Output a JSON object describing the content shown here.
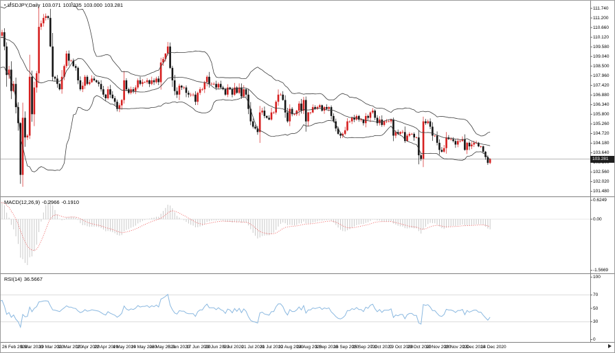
{
  "title_bar": {
    "bullet": "▪",
    "title": "USDJPY,Daily",
    "open": "103.071",
    "high": "103.335",
    "low": "103.000",
    "close": "103.281"
  },
  "macd_panel": {
    "name": "MACD(12,26,9)",
    "main_value": "-0.2966",
    "signal_value": "-0.1910"
  },
  "rsi_panel": {
    "name": "RSI(14)",
    "value": "36.5667"
  },
  "price_badge": "103.281",
  "chart_data": {
    "type": "candlestick",
    "symbol": "USDJPY",
    "timeframe": "Daily",
    "title": "USDJPY,Daily 103.071 103.335 103.000 103.281",
    "ylim": [
      101.23,
      112.09
    ],
    "first_open": 111.3,
    "warmup_closes": [
      108.7,
      109.0,
      109.2,
      109.8,
      109.9,
      109.7,
      109.6,
      109.9,
      110.0,
      109.9,
      109.8,
      110.4,
      111.2,
      112.1,
      111.6
    ],
    "closes": [
      110.7,
      110.2,
      110.4,
      109.6,
      108.0,
      108.3,
      107.1,
      107.5,
      106.2,
      105.3,
      102.4,
      105.6,
      104.5,
      104.6,
      107.9,
      105.8,
      107.3,
      108.1,
      110.7,
      110.9,
      111.2,
      111.3,
      111.2,
      109.6,
      107.9,
      107.8,
      107.5,
      107.2,
      107.9,
      108.5,
      109.2,
      108.8,
      108.8,
      108.5,
      108.4,
      107.7,
      107.2,
      107.4,
      107.9,
      107.5,
      107.6,
      107.8,
      107.7,
      107.6,
      107.5,
      107.2,
      106.9,
      106.7,
      107.2,
      106.9,
      106.7,
      106.5,
      106.1,
      106.3,
      106.6,
      107.7,
      107.2,
      107.0,
      107.2,
      107.1,
      107.3,
      107.7,
      107.5,
      107.6,
      107.6,
      107.7,
      107.5,
      107.7,
      107.6,
      107.8,
      107.6,
      108.7,
      108.9,
      109.2,
      109.6,
      108.4,
      107.7,
      107.1,
      106.9,
      107.4,
      107.3,
      107.3,
      107.0,
      106.9,
      106.9,
      106.9,
      106.5,
      107.0,
      107.2,
      107.2,
      107.6,
      107.9,
      107.5,
      107.5,
      107.5,
      107.3,
      107.5,
      107.3,
      107.2,
      106.9,
      107.3,
      107.2,
      106.9,
      107.3,
      107.0,
      107.3,
      106.8,
      107.2,
      106.9,
      106.1,
      105.4,
      105.1,
      105.0,
      104.8,
      105.9,
      106.0,
      105.7,
      105.6,
      105.5,
      105.9,
      105.9,
      106.5,
      106.9,
      106.9,
      106.6,
      105.9,
      105.4,
      106.1,
      105.8,
      105.8,
      106.0,
      106.4,
      106.0,
      106.6,
      105.4,
      105.9,
      105.9,
      106.2,
      106.1,
      106.2,
      106.3,
      106.0,
      106.2,
      106.1,
      106.2,
      105.7,
      105.4,
      105.0,
      104.7,
      104.6,
      104.7,
      104.9,
      105.4,
      105.4,
      105.6,
      105.5,
      105.7,
      105.5,
      105.5,
      105.3,
      105.7,
      105.6,
      105.9,
      106.0,
      105.6,
      105.3,
      105.5,
      105.2,
      105.4,
      105.4,
      105.4,
      105.5,
      104.6,
      104.8,
      104.7,
      104.8,
      104.8,
      104.3,
      104.6,
      104.7,
      104.7,
      104.5,
      104.5,
      103.5,
      103.3,
      105.4,
      105.3,
      105.4,
      105.1,
      104.6,
      104.6,
      104.2,
      103.8,
      103.7,
      103.9,
      104.5,
      104.4,
      104.4,
      104.3,
      104.1,
      104.3,
      104.3,
      104.4,
      103.8,
      104.2,
      104.0,
      104.1,
      104.2,
      104.2,
      104.0,
      104.0,
      103.7,
      103.4,
      103.071,
      103.281
    ],
    "extremes": [
      {
        "i": 10,
        "low": 101.9
      },
      {
        "i": 23,
        "high": 111.71
      },
      {
        "i": 74,
        "high": 109.85
      },
      {
        "i": 114,
        "low": 104.19
      },
      {
        "i": 184,
        "low": 103.18
      },
      {
        "i": 214,
        "high": 103.335,
        "low": 103.0
      }
    ],
    "price_axis_labels": [
      "111.740",
      "111.200",
      "110.660",
      "110.120",
      "109.580",
      "109.040",
      "108.500",
      "107.960",
      "107.420",
      "106.880",
      "106.340",
      "105.800",
      "105.260",
      "104.720",
      "104.180",
      "103.640",
      "103.100",
      "102.560",
      "102.020",
      "101.480"
    ],
    "date_labels": [
      "26 Feb 2020",
      "9 Mar 2020",
      "19 Mar 2020",
      "31 Mar 2020",
      "10 Apr 2020",
      "22 Apr 2020",
      "4 May 2020",
      "14 May 2020",
      "26 May 2020",
      "5 Jun 2020",
      "17 Jun 2020",
      "29 Jun 2020",
      "9 Jul 2020",
      "21 Jul 2020",
      "31 Jul 2020",
      "12 Aug 2020",
      "24 Aug 2020",
      "3 Sep 2020",
      "16 Sep 2020",
      "25 Sep 2020",
      "7 Oct 2020",
      "19 Oct 2020",
      "29 Oct 2020",
      "10 Nov 2020",
      "20 Nov 2020",
      "2 Dec 2020",
      "14 Dec 2020"
    ],
    "date_label_first_index": 2,
    "date_label_index_step": 8,
    "indicators": {
      "bollinger": {
        "period": 20,
        "deviation": 2
      },
      "macd": {
        "fast": 12,
        "slow": 26,
        "signal": 9,
        "ylim": [
          -1.5669,
          0.6249
        ],
        "axis_labels": [
          "0.6249",
          "0.00",
          "-1.5669"
        ]
      },
      "rsi": {
        "period": 14,
        "ylim": [
          0,
          100
        ],
        "levels": [
          30,
          70
        ],
        "axis_labels": [
          "100",
          "70",
          "50",
          "30",
          "0"
        ]
      }
    },
    "colors": {
      "bull": "#d61f1f",
      "bear": "#141414",
      "bollinger": "#3c3c3c",
      "macd_bars": "#c9c9c9",
      "macd_signal": "#ee5555",
      "rsi_line": "#8ab8e0",
      "price_line": "#aaaaaa",
      "level_line": "#dcdcdc",
      "separator": "#808080",
      "badge_bg": "#1e1e1e",
      "badge_text": "#ffffff"
    }
  }
}
